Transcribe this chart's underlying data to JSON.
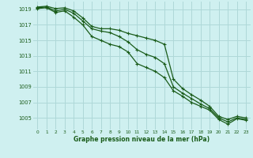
{
  "xlabel": "Graphe pression niveau de la mer (hPa)",
  "bg_color": "#cff0f0",
  "grid_color": "#aed8d8",
  "line_color": "#1a5c1a",
  "text_color": "#1a5c1a",
  "ylim": [
    1003.5,
    1020.0
  ],
  "yticks": [
    1005,
    1007,
    1009,
    1011,
    1013,
    1015,
    1017,
    1019
  ],
  "xlim": [
    -0.5,
    23.5
  ],
  "xticks": [
    0,
    1,
    2,
    3,
    4,
    5,
    6,
    7,
    8,
    9,
    10,
    11,
    12,
    13,
    14,
    15,
    16,
    17,
    18,
    19,
    20,
    21,
    22,
    23
  ],
  "series": [
    [
      1019.3,
      1019.4,
      1019.1,
      1019.2,
      1018.8,
      1017.9,
      1016.8,
      1016.5,
      1016.5,
      1016.3,
      1015.9,
      1015.6,
      1015.3,
      1015.0,
      1014.5,
      1010.0,
      1008.8,
      1008.0,
      1007.3,
      1006.5,
      1005.2,
      1004.8,
      1005.2,
      1005.0
    ],
    [
      1019.2,
      1019.3,
      1018.8,
      1019.0,
      1018.5,
      1017.5,
      1016.5,
      1016.2,
      1016.0,
      1015.5,
      1014.8,
      1013.8,
      1013.2,
      1012.8,
      1012.0,
      1009.0,
      1008.2,
      1007.5,
      1006.8,
      1006.2,
      1005.0,
      1004.5,
      1005.0,
      1004.8
    ],
    [
      1019.1,
      1019.2,
      1018.6,
      1018.8,
      1018.0,
      1017.0,
      1015.5,
      1015.0,
      1014.5,
      1014.2,
      1013.5,
      1012.0,
      1011.5,
      1011.0,
      1010.2,
      1008.5,
      1007.8,
      1007.0,
      1006.5,
      1006.0,
      1004.8,
      1004.2,
      1004.9,
      1004.7
    ]
  ]
}
